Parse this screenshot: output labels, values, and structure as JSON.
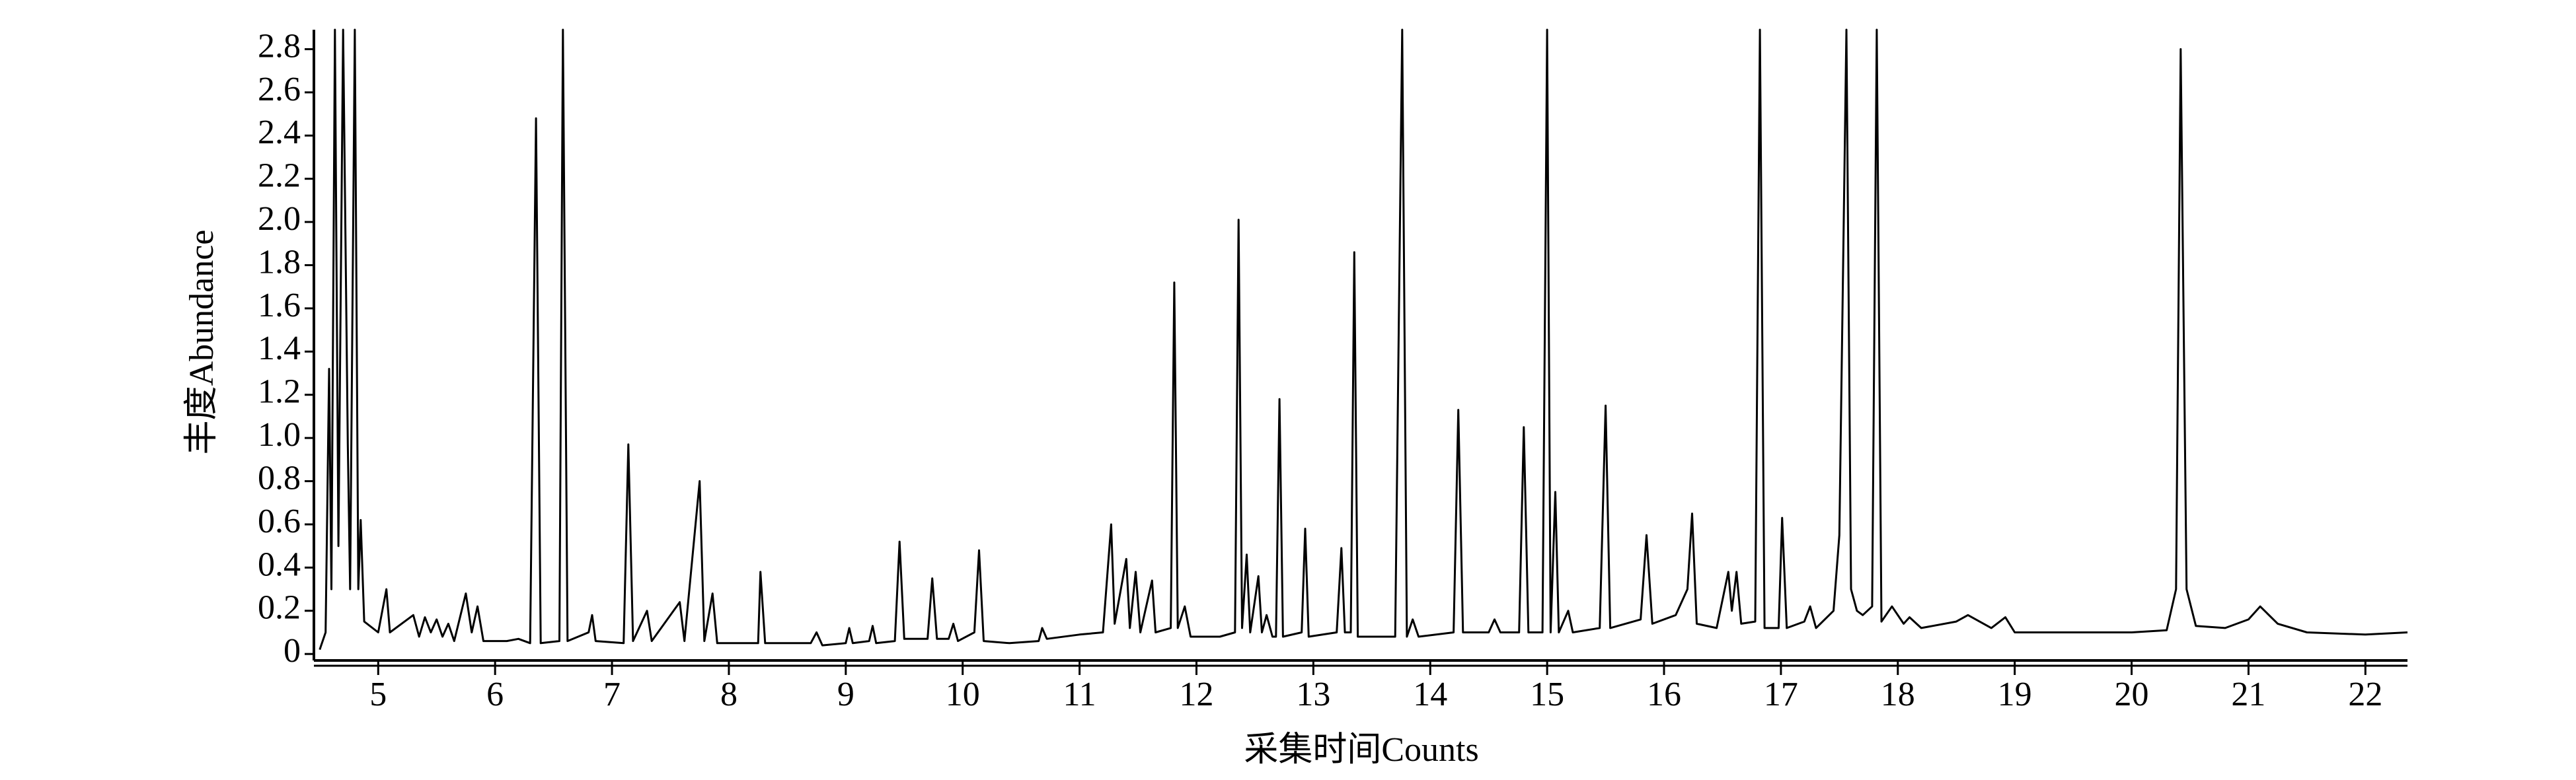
{
  "chart_data": {
    "type": "line",
    "xlabel": "采集时间Counts",
    "ylabel": "丰度Abundance",
    "xlim": [
      4.45,
      22.36
    ],
    "ylim": [
      -0.03,
      2.89
    ],
    "xticks": [
      5,
      6,
      7,
      8,
      9,
      10,
      11,
      12,
      13,
      14,
      15,
      16,
      17,
      18,
      19,
      20,
      21,
      22
    ],
    "yticks": [
      0,
      0.2,
      0.4,
      0.6,
      0.8,
      {
        "value": 1,
        "label": "1.0"
      },
      1.2,
      1.4,
      1.6,
      1.8,
      {
        "value": 2,
        "label": "2.0"
      },
      2.2,
      2.4,
      2.6,
      2.8
    ],
    "series": [
      {
        "color": "#000000",
        "x": [
          4.5,
          4.55,
          4.58,
          4.6,
          4.63,
          4.66,
          4.7,
          4.74,
          4.76,
          4.8,
          4.83,
          4.85,
          4.88,
          5.0,
          5.07,
          5.1,
          5.3,
          5.35,
          5.4,
          5.45,
          5.5,
          5.55,
          5.6,
          5.65,
          5.75,
          5.8,
          5.85,
          5.9,
          6.1,
          6.2,
          6.3,
          6.35,
          6.39,
          6.55,
          6.58,
          6.62,
          6.8,
          6.83,
          6.86,
          7.1,
          7.14,
          7.18,
          7.3,
          7.34,
          7.58,
          7.62,
          7.75,
          7.79,
          7.86,
          7.9,
          8.25,
          8.27,
          8.31,
          8.7,
          8.75,
          8.8,
          9.0,
          9.03,
          9.06,
          9.2,
          9.23,
          9.26,
          9.42,
          9.46,
          9.5,
          9.7,
          9.74,
          9.78,
          9.88,
          9.92,
          9.96,
          10.1,
          10.14,
          10.18,
          10.4,
          10.65,
          10.68,
          10.72,
          11.0,
          11.2,
          11.27,
          11.3,
          11.4,
          11.43,
          11.48,
          11.52,
          11.62,
          11.65,
          11.78,
          11.81,
          11.84,
          11.9,
          11.95,
          12.2,
          12.33,
          12.36,
          12.39,
          12.43,
          12.46,
          12.53,
          12.56,
          12.6,
          12.65,
          12.68,
          12.71,
          12.74,
          12.9,
          12.93,
          12.96,
          13.2,
          13.24,
          13.27,
          13.32,
          13.35,
          13.38,
          13.7,
          13.76,
          13.8,
          13.85,
          13.9,
          14.2,
          14.24,
          14.28,
          14.5,
          14.55,
          14.6,
          14.76,
          14.8,
          14.84,
          14.96,
          15.0,
          15.03,
          15.07,
          15.1,
          15.18,
          15.22,
          15.45,
          15.5,
          15.54,
          15.8,
          15.85,
          15.9,
          16.1,
          16.2,
          16.24,
          16.28,
          16.45,
          16.55,
          16.58,
          16.62,
          16.66,
          16.78,
          16.82,
          16.86,
          16.98,
          17.01,
          17.05,
          17.2,
          17.25,
          17.3,
          17.45,
          17.5,
          17.56,
          17.6,
          17.65,
          17.7,
          17.78,
          17.82,
          17.86,
          17.95,
          18.05,
          18.1,
          18.2,
          18.5,
          18.6,
          18.8,
          18.92,
          19.0,
          19.5,
          20.0,
          20.3,
          20.38,
          20.42,
          20.47,
          20.55,
          20.8,
          21.0,
          21.1,
          21.25,
          21.5,
          22.0,
          22.36
        ],
        "values": [
          0.02,
          0.1,
          1.32,
          0.3,
          2.89,
          0.5,
          2.89,
          0.97,
          0.3,
          2.89,
          0.3,
          0.62,
          0.15,
          0.1,
          0.3,
          0.1,
          0.18,
          0.08,
          0.17,
          0.1,
          0.16,
          0.08,
          0.14,
          0.06,
          0.28,
          0.1,
          0.22,
          0.06,
          0.06,
          0.07,
          0.05,
          2.48,
          0.05,
          0.06,
          2.89,
          0.06,
          0.1,
          0.18,
          0.06,
          0.05,
          0.97,
          0.06,
          0.2,
          0.06,
          0.24,
          0.06,
          0.8,
          0.06,
          0.28,
          0.05,
          0.05,
          0.38,
          0.05,
          0.05,
          0.1,
          0.04,
          0.05,
          0.12,
          0.05,
          0.06,
          0.13,
          0.05,
          0.06,
          0.52,
          0.07,
          0.07,
          0.35,
          0.07,
          0.07,
          0.14,
          0.06,
          0.1,
          0.48,
          0.06,
          0.05,
          0.06,
          0.12,
          0.07,
          0.09,
          0.1,
          0.6,
          0.14,
          0.44,
          0.12,
          0.38,
          0.1,
          0.34,
          0.1,
          0.12,
          1.72,
          0.12,
          0.22,
          0.08,
          0.08,
          0.1,
          2.01,
          0.12,
          0.46,
          0.1,
          0.36,
          0.1,
          0.18,
          0.08,
          0.08,
          1.18,
          0.08,
          0.1,
          0.58,
          0.08,
          0.1,
          0.49,
          0.1,
          0.1,
          1.86,
          0.08,
          0.08,
          2.89,
          0.08,
          0.16,
          0.08,
          0.1,
          1.13,
          0.1,
          0.1,
          0.16,
          0.1,
          0.1,
          1.05,
          0.1,
          0.1,
          2.89,
          0.1,
          0.75,
          0.1,
          0.2,
          0.1,
          0.12,
          1.15,
          0.12,
          0.16,
          0.55,
          0.14,
          0.18,
          0.3,
          0.65,
          0.14,
          0.12,
          0.38,
          0.2,
          0.38,
          0.14,
          0.15,
          2.89,
          0.12,
          0.12,
          0.63,
          0.12,
          0.15,
          0.22,
          0.12,
          0.2,
          0.55,
          2.89,
          0.3,
          0.2,
          0.18,
          0.22,
          2.89,
          0.15,
          0.22,
          0.14,
          0.17,
          0.12,
          0.15,
          0.18,
          0.12,
          0.17,
          0.1,
          0.1,
          0.1,
          0.11,
          0.3,
          2.8,
          0.3,
          0.13,
          0.12,
          0.16,
          0.22,
          0.14,
          0.1,
          0.09,
          0.1
        ]
      }
    ]
  }
}
